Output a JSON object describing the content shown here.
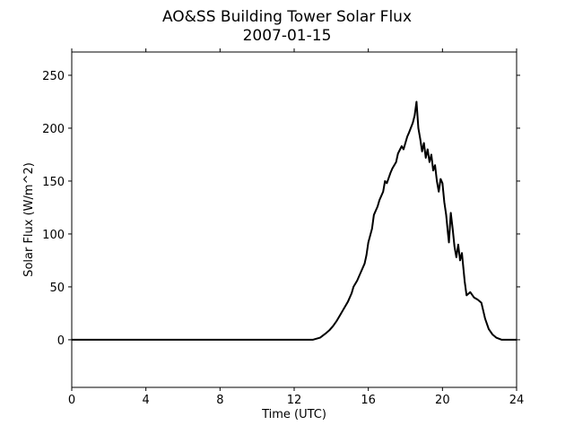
{
  "chart_data": {
    "type": "line",
    "title": "AO&SS Building Tower Solar Flux",
    "subtitle": "2007-01-15",
    "xlabel": "Time (UTC)",
    "ylabel": "Solar Flux (W/m^2)",
    "xlim": [
      0,
      24
    ],
    "ylim": [
      -45,
      272
    ],
    "xticks": [
      0,
      4,
      8,
      12,
      16,
      20,
      24
    ],
    "yticks": [
      0,
      50,
      100,
      150,
      200,
      250
    ],
    "xtick_labels": [
      "0",
      "4",
      "8",
      "12",
      "16",
      "20",
      "24"
    ],
    "ytick_labels": [
      "0",
      "50",
      "100",
      "150",
      "200",
      "250"
    ],
    "grid": false,
    "legend": "none",
    "line_color": "#000000",
    "series": [
      {
        "x": [
          0,
          13.0,
          13.4,
          13.7,
          13.9,
          14.1,
          14.3,
          14.5,
          14.7,
          14.9,
          15.1,
          15.2,
          15.4,
          15.6,
          15.8,
          15.9,
          16.0,
          16.2,
          16.3,
          16.5,
          16.6,
          16.8,
          16.9,
          17.0,
          17.2,
          17.3,
          17.5,
          17.6,
          17.8,
          17.9,
          18.1,
          18.2,
          18.4,
          18.5,
          18.6,
          18.7,
          18.8,
          18.9,
          19.0,
          19.1,
          19.2,
          19.3,
          19.4,
          19.5,
          19.6,
          19.7,
          19.8,
          19.9,
          20.0,
          20.1,
          20.2,
          20.3,
          20.35,
          20.45,
          20.55,
          20.65,
          20.75,
          20.85,
          20.95,
          21.05,
          21.2,
          21.3,
          21.5,
          21.7,
          21.9,
          22.1,
          22.3,
          22.5,
          22.7,
          22.9,
          23.2,
          23.5,
          24.0
        ],
        "y": [
          0,
          0,
          2,
          6,
          9,
          13,
          18,
          24,
          30,
          36,
          44,
          50,
          56,
          64,
          72,
          80,
          92,
          105,
          118,
          126,
          132,
          140,
          150,
          148,
          158,
          162,
          168,
          176,
          183,
          180,
          192,
          196,
          205,
          212,
          225,
          200,
          190,
          178,
          186,
          172,
          180,
          168,
          175,
          160,
          165,
          150,
          140,
          152,
          148,
          130,
          118,
          100,
          92,
          120,
          105,
          88,
          78,
          90,
          75,
          82,
          55,
          42,
          45,
          40,
          38,
          35,
          20,
          10,
          5,
          2,
          0,
          0,
          0
        ]
      }
    ]
  }
}
